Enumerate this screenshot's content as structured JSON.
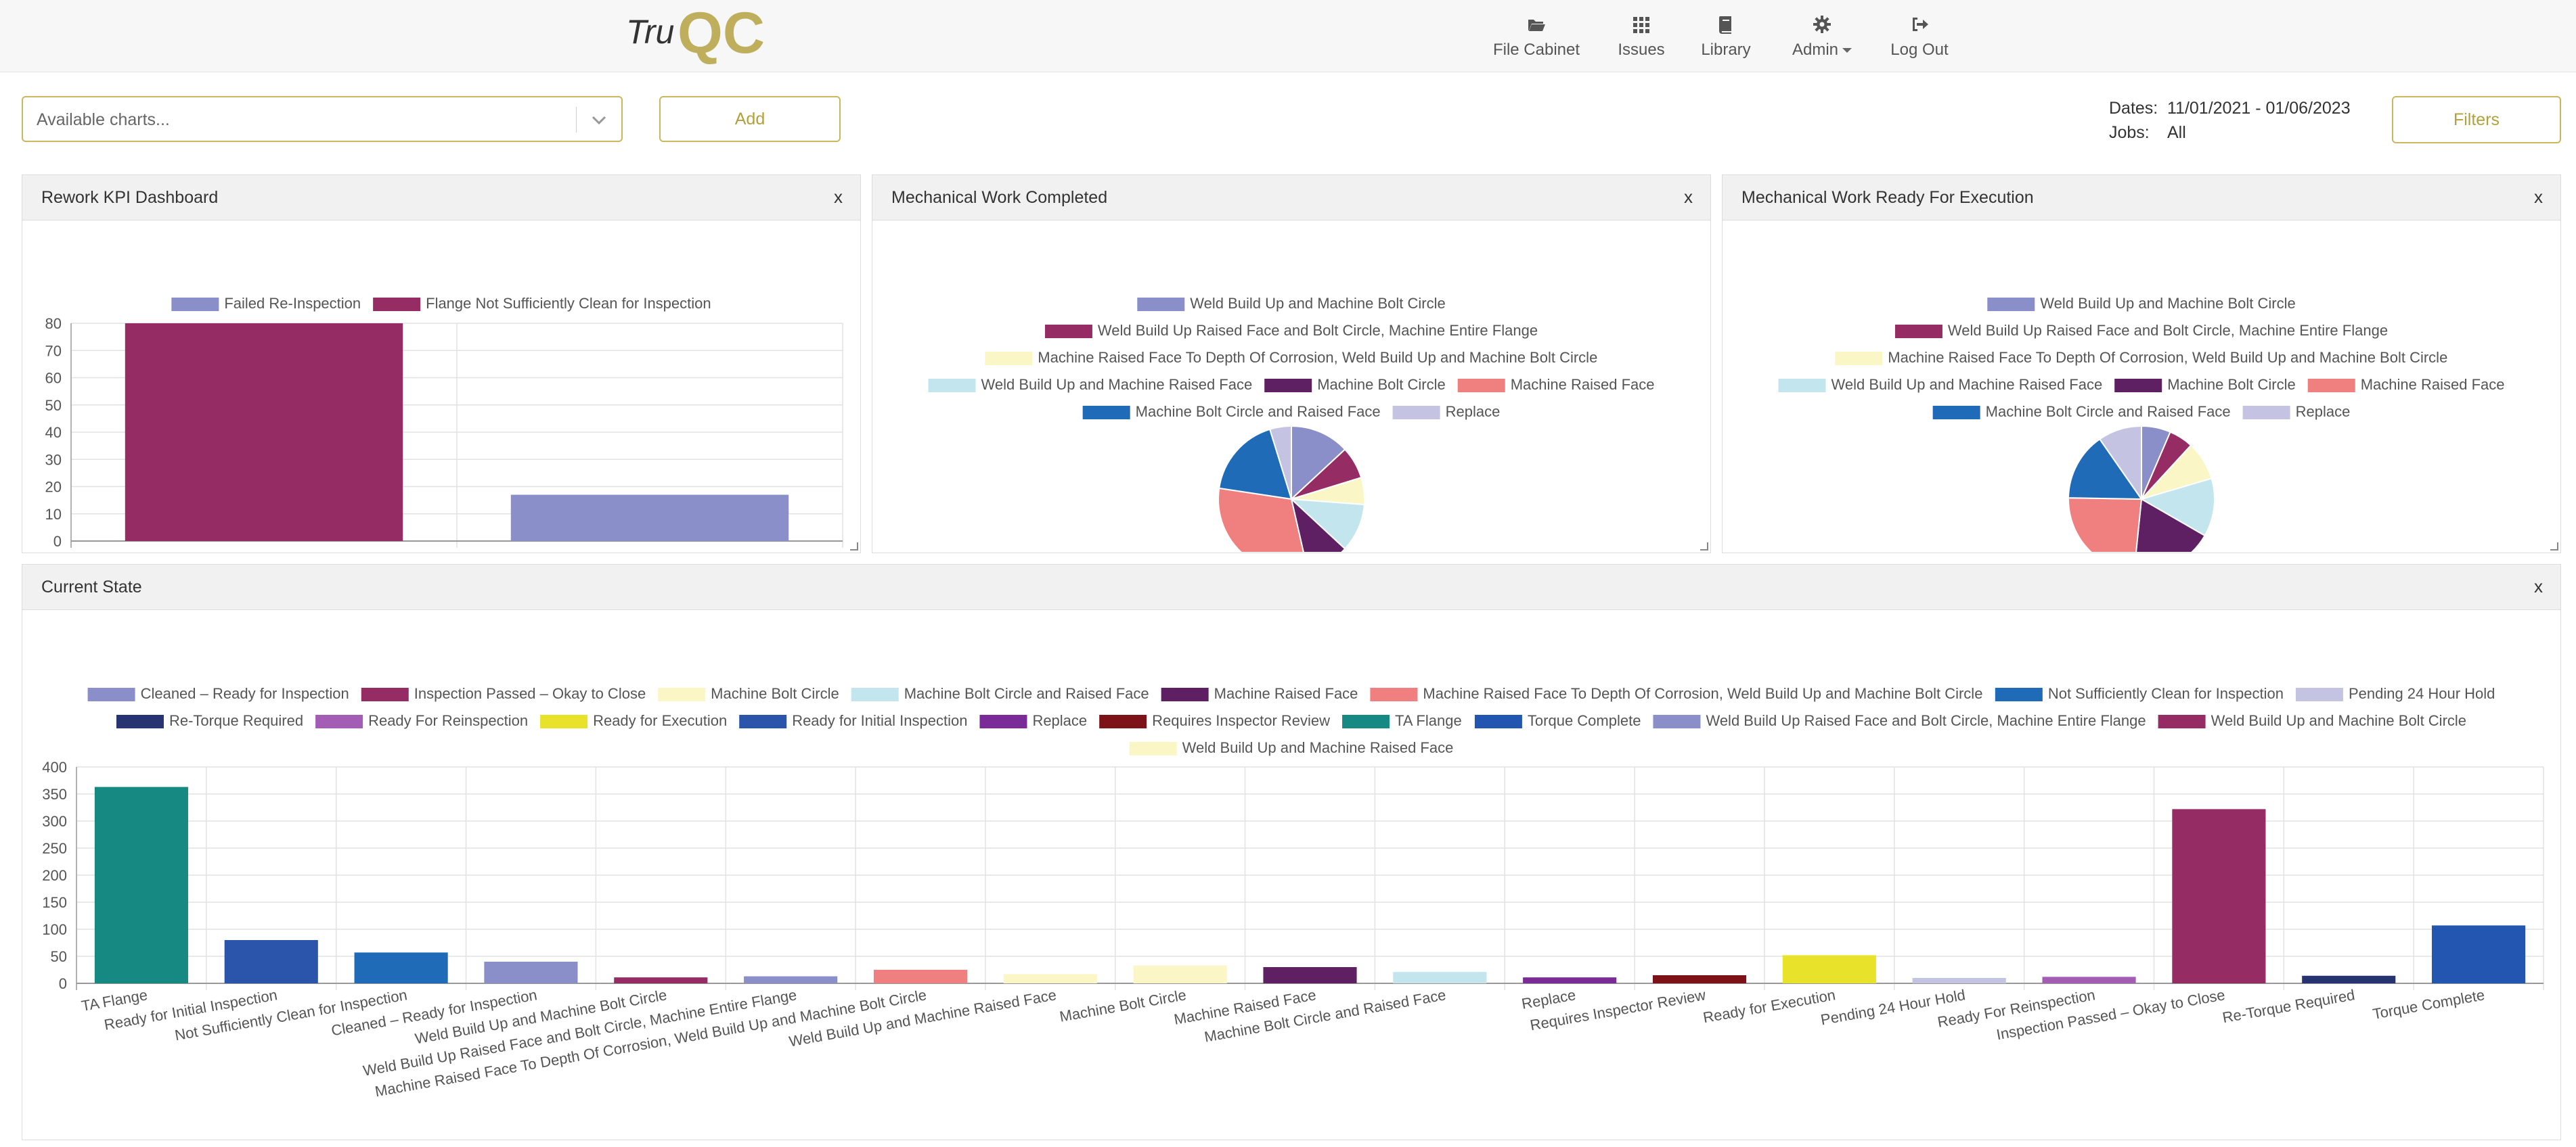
{
  "brand": {
    "logo_text_tru": "Tru",
    "logo_text_qc": "QC"
  },
  "nav": {
    "file_cabinet": "File Cabinet",
    "issues": "Issues",
    "library": "Library",
    "admin": "Admin",
    "logout": "Log Out"
  },
  "toolbar": {
    "charts_placeholder": "Available charts...",
    "add_label": "Add",
    "filters_label": "Filters",
    "dates_label": "Dates:",
    "dates_value": "11/01/2021 - 01/06/2023",
    "jobs_label": "Jobs:",
    "jobs_value": "All"
  },
  "panels": {
    "rework": {
      "title": "Rework KPI Dashboard",
      "close": "x"
    },
    "mech_completed": {
      "title": "Mechanical Work Completed",
      "close": "x"
    },
    "mech_ready": {
      "title": "Mechanical Work Ready For Execution",
      "close": "x"
    },
    "current_state": {
      "title": "Current State",
      "close": "x"
    }
  },
  "colors": {
    "accent": "#c9b65f",
    "accent_text": "#b3a03c"
  },
  "chart_data": [
    {
      "id": "rework",
      "type": "bar",
      "categories": [
        "Flange Not Sufficiently Clean for Inspection",
        "Failed Re-Inspection"
      ],
      "series": [
        {
          "name": "Failed Re-Inspection",
          "color": "#8a8fca"
        },
        {
          "name": "Flange Not Sufficiently Clean for Inspection",
          "color": "#952d64"
        }
      ],
      "values": [
        80,
        17
      ],
      "bar_colors": [
        "#952d64",
        "#8a8fca"
      ],
      "ylim": [
        0,
        80
      ],
      "yticks": [
        0,
        10,
        20,
        30,
        40,
        50,
        60,
        70,
        80
      ],
      "grid": true,
      "legend": "top"
    },
    {
      "id": "mech_completed",
      "type": "pie",
      "legend_rows": [
        [
          0
        ],
        [
          1
        ],
        [
          2
        ],
        [
          3,
          4,
          5
        ],
        [
          6,
          7
        ]
      ],
      "labels": [
        "Weld Build Up and Machine Bolt Circle",
        "Weld Build Up Raised Face and Bolt Circle, Machine Entire Flange",
        "Machine Raised Face To Depth Of Corrosion, Weld Build Up and Machine Bolt Circle",
        "Weld Build Up and Machine Raised Face",
        "Machine Bolt Circle",
        "Machine Raised Face",
        "Machine Bolt Circle and Raised Face",
        "Replace"
      ],
      "colors": [
        "#8a8fca",
        "#952d64",
        "#fbf6c6",
        "#c3e5ee",
        "#5f1f63",
        "#f08080",
        "#1f6bb8",
        "#c4c4e2"
      ],
      "values": [
        11,
        6,
        5,
        9,
        8,
        26,
        15,
        4
      ],
      "legend": "top"
    },
    {
      "id": "mech_ready",
      "type": "pie",
      "legend_rows": [
        [
          0
        ],
        [
          1
        ],
        [
          2
        ],
        [
          3,
          4,
          5
        ],
        [
          6,
          7
        ]
      ],
      "labels": [
        "Weld Build Up and Machine Bolt Circle",
        "Weld Build Up Raised Face and Bolt Circle, Machine Entire Flange",
        "Machine Raised Face To Depth Of Corrosion, Weld Build Up and Machine Bolt Circle",
        "Weld Build Up and Machine Raised Face",
        "Machine Bolt Circle",
        "Machine Raised Face",
        "Machine Bolt Circle and Raised Face",
        "Replace"
      ],
      "colors": [
        "#8a8fca",
        "#952d64",
        "#fbf6c6",
        "#c3e5ee",
        "#5f1f63",
        "#f08080",
        "#1f6bb8",
        "#c4c4e2"
      ],
      "values": [
        6,
        5,
        8,
        12,
        17,
        22,
        14,
        9
      ],
      "legend": "top"
    },
    {
      "id": "current_state",
      "type": "bar",
      "legend_rows": [
        [
          0,
          1,
          2,
          3,
          4,
          5,
          6,
          7
        ],
        [
          8,
          9,
          10,
          11,
          12,
          13,
          14,
          15,
          16,
          17
        ],
        [
          18
        ]
      ],
      "legend_items": [
        {
          "name": "Cleaned – Ready for Inspection",
          "color": "#8a8fca"
        },
        {
          "name": "Inspection Passed – Okay to Close",
          "color": "#952d64"
        },
        {
          "name": "Machine Bolt Circle",
          "color": "#fbf6c6"
        },
        {
          "name": "Machine Bolt Circle and Raised Face",
          "color": "#c3e5ee"
        },
        {
          "name": "Machine Raised Face",
          "color": "#5f1f63"
        },
        {
          "name": "Machine Raised Face To Depth Of Corrosion, Weld Build Up and Machine Bolt Circle",
          "color": "#f08080"
        },
        {
          "name": "Not Sufficiently Clean for Inspection",
          "color": "#1f6bb8"
        },
        {
          "name": "Pending 24 Hour Hold",
          "color": "#c4c4e2"
        },
        {
          "name": "Re-Torque Required",
          "color": "#283371"
        },
        {
          "name": "Ready For Reinspection",
          "color": "#a35db5"
        },
        {
          "name": "Ready for Execution",
          "color": "#e8e22a"
        },
        {
          "name": "Ready for Initial Inspection",
          "color": "#2a55ab"
        },
        {
          "name": "Replace",
          "color": "#7b2b98"
        },
        {
          "name": "Requires Inspector Review",
          "color": "#7d1218"
        },
        {
          "name": "TA Flange",
          "color": "#168a82"
        },
        {
          "name": "Torque Complete",
          "color": "#2356b0"
        },
        {
          "name": "Weld Build Up Raised Face and Bolt Circle, Machine Entire Flange",
          "color": "#8a8fca"
        },
        {
          "name": "Weld Build Up and Machine Bolt Circle",
          "color": "#952d64"
        },
        {
          "name": "Weld Build Up and Machine Raised Face",
          "color": "#fbf6c6"
        }
      ],
      "categories": [
        "TA Flange",
        "Ready for Initial Inspection",
        "Not Sufficiently Clean for Inspection",
        "Cleaned – Ready for Inspection",
        "Weld Build Up and Machine Bolt Circle",
        "Weld Build Up Raised Face and Bolt Circle, Machine Entire Flange",
        "Machine Raised Face To Depth Of Corrosion, Weld Build Up and Machine Bolt Circle",
        "Weld Build Up and Machine Raised Face",
        "Machine Bolt Circle",
        "Machine Raised Face",
        "Machine Bolt Circle and Raised Face",
        "Replace",
        "Requires Inspector Review",
        "Ready for Execution",
        "Pending 24 Hour Hold",
        "Ready For Reinspection",
        "Inspection Passed – Okay to Close",
        "Re-Torque Required",
        "Torque Complete"
      ],
      "values": [
        363,
        80,
        57,
        40,
        11,
        13,
        25,
        17,
        33,
        30,
        21,
        11,
        15,
        52,
        10,
        12,
        322,
        14,
        107
      ],
      "bar_colors": [
        "#168a82",
        "#2a55ab",
        "#1f6bb8",
        "#8a8fca",
        "#952d64",
        "#8a8fca",
        "#f08080",
        "#fbf6c6",
        "#fbf6c6",
        "#5f1f63",
        "#c3e5ee",
        "#7b2b98",
        "#7d1218",
        "#e8e22a",
        "#c4c4e2",
        "#a35db5",
        "#952d64",
        "#283371",
        "#2356b0"
      ],
      "ylim": [
        0,
        400
      ],
      "yticks": [
        0,
        50,
        100,
        150,
        200,
        250,
        300,
        350,
        400
      ],
      "grid": true,
      "legend": "top"
    }
  ]
}
